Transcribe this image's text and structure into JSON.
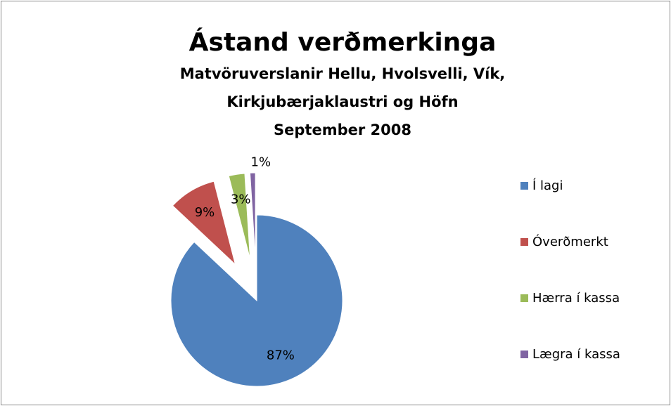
{
  "chart_data": {
    "type": "pie",
    "title": "Ástand verðmerkinga",
    "subtitle": [
      "Matvöruverslanir Hellu, Hvolsvelli, Vík,",
      "Kirkjubærjaklaustri og Höfn",
      "September 2008"
    ],
    "categories": [
      "Í lagi",
      "Óverðmerkt",
      "Hærra í kassa",
      "Lægra í kassa"
    ],
    "values": [
      87,
      9,
      3,
      1
    ],
    "value_labels": [
      "87%",
      "9%",
      "3%",
      "1%"
    ],
    "colors": [
      "#4f81bd",
      "#c0504d",
      "#9bbb59",
      "#8064a2"
    ],
    "legend": "right"
  }
}
